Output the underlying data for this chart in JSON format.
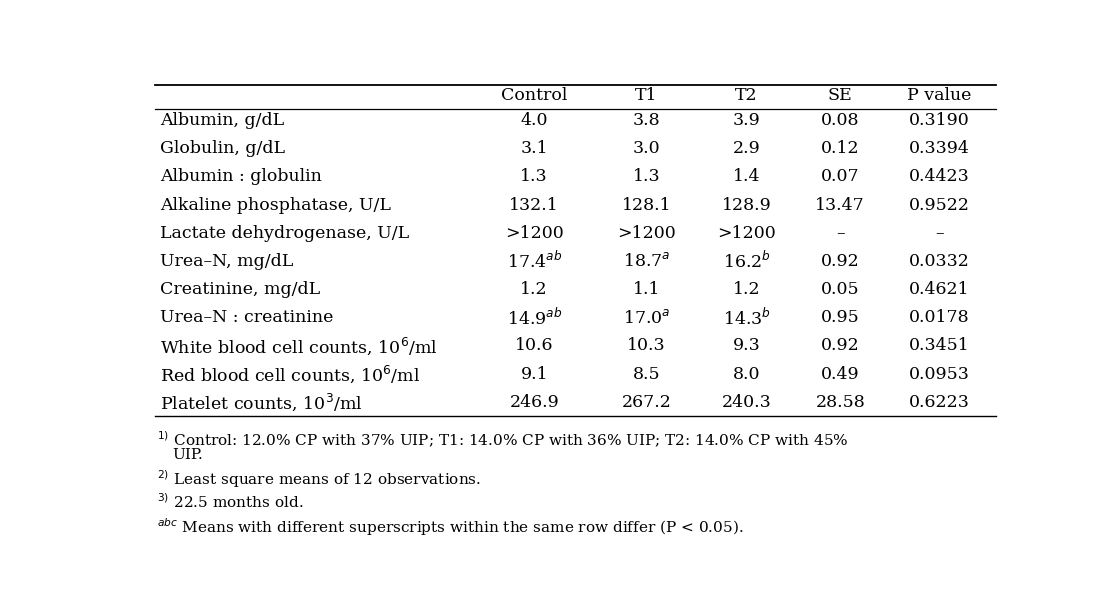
{
  "columns": [
    "",
    "Control",
    "T1",
    "T2",
    "SE",
    "P value"
  ],
  "rows": [
    {
      "label": "Albumin, g/dL",
      "control": "4.0",
      "t1": "3.8",
      "t2": "3.9",
      "se": "0.08",
      "pval": "0.3190",
      "control_sup": "",
      "t1_sup": "",
      "t2_sup": ""
    },
    {
      "label": "Globulin, g/dL",
      "control": "3.1",
      "t1": "3.0",
      "t2": "2.9",
      "se": "0.12",
      "pval": "0.3394",
      "control_sup": "",
      "t1_sup": "",
      "t2_sup": ""
    },
    {
      "label": "Albumin : globulin",
      "control": "1.3",
      "t1": "1.3",
      "t2": "1.4",
      "se": "0.07",
      "pval": "0.4423",
      "control_sup": "",
      "t1_sup": "",
      "t2_sup": ""
    },
    {
      "label": "Alkaline phosphatase, U/L",
      "control": "132.1",
      "t1": "128.1",
      "t2": "128.9",
      "se": "13.47",
      "pval": "0.9522",
      "control_sup": "",
      "t1_sup": "",
      "t2_sup": ""
    },
    {
      "label": "Lactate dehydrogenase, U/L",
      "control": ">1200",
      "t1": ">1200",
      "t2": ">1200",
      "se": "–",
      "pval": "–",
      "control_sup": "",
      "t1_sup": "",
      "t2_sup": ""
    },
    {
      "label": "Urea–N, mg/dL",
      "control": "17.4",
      "t1": "18.7",
      "t2": "16.2",
      "se": "0.92",
      "pval": "0.0332",
      "control_sup": "ab",
      "t1_sup": "a",
      "t2_sup": "b"
    },
    {
      "label": "Creatinine, mg/dL",
      "control": "1.2",
      "t1": "1.1",
      "t2": "1.2",
      "se": "0.05",
      "pval": "0.4621",
      "control_sup": "",
      "t1_sup": "",
      "t2_sup": ""
    },
    {
      "label": "Urea–N : creatinine",
      "control": "14.9",
      "t1": "17.0",
      "t2": "14.3",
      "se": "0.95",
      "pval": "0.0178",
      "control_sup": "ab",
      "t1_sup": "a",
      "t2_sup": "b"
    },
    {
      "label": "White blood cell counts, 10$^{6}$/ml",
      "control": "10.6",
      "t1": "10.3",
      "t2": "9.3",
      "se": "0.92",
      "pval": "0.3451",
      "control_sup": "",
      "t1_sup": "",
      "t2_sup": ""
    },
    {
      "label": "Red blood cell counts, 10$^{6}$/ml",
      "control": "9.1",
      "t1": "8.5",
      "t2": "8.0",
      "se": "0.49",
      "pval": "0.0953",
      "control_sup": "",
      "t1_sup": "",
      "t2_sup": ""
    },
    {
      "label": "Platelet counts, 10$^{3}$/ml",
      "control": "246.9",
      "t1": "267.2",
      "t2": "240.3",
      "se": "28.58",
      "pval": "0.6223",
      "control_sup": "",
      "t1_sup": "",
      "t2_sup": ""
    }
  ],
  "footnote_line1": "Control: 12.0% CP with 37% UIP; T1: 14.0% CP with 36% UIP; T2: 14.0% CP with 45%",
  "footnote_line1b": "UIP.",
  "footnote_line1_marker": "1)",
  "footnote_line2": " Least square means of 12 observations.",
  "footnote_line2_marker": "2)",
  "footnote_line3": " 22.5 months old.",
  "footnote_line3_marker": "3)",
  "footnote_line4_marker": "abc",
  "footnote_line4": " Means with different superscripts within the same row differ (P < 0.05).",
  "bg_color": "#ffffff",
  "text_color": "#000000",
  "font_size": 12.5,
  "footnote_font_size": 11.0
}
